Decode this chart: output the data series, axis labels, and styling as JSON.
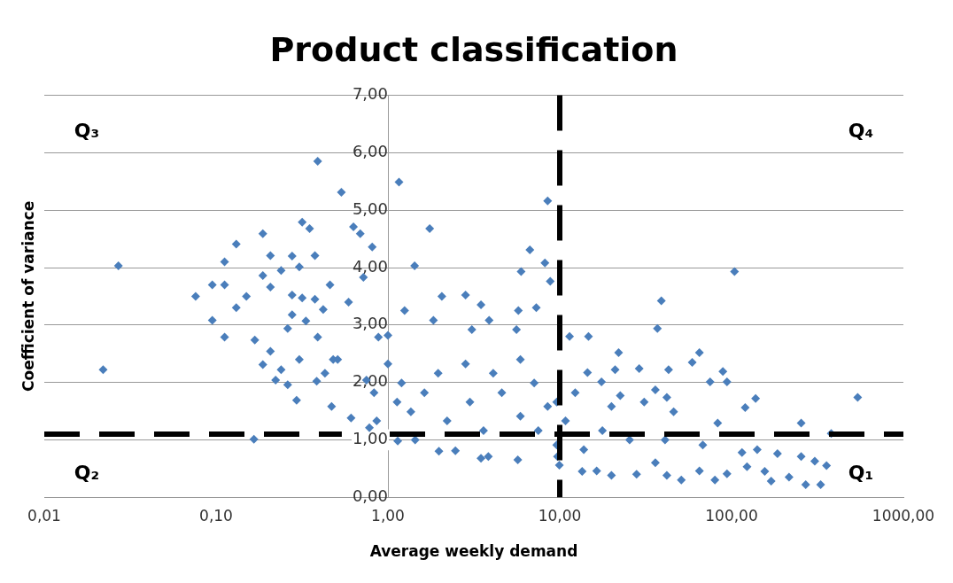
{
  "chart_data": {
    "type": "scatter",
    "title": "Product classification",
    "xlabel": "Average weekly demand",
    "ylabel": "Coefficient of variance",
    "log": "x",
    "grid": "y",
    "legend": false,
    "marker": "diamond",
    "xlim": [
      0.01,
      1000
    ],
    "xticks": [
      {
        "value": 0.01,
        "label": "0,01"
      },
      {
        "value": 0.1,
        "label": "0,10"
      },
      {
        "value": 1,
        "label": "1,00"
      },
      {
        "value": 10,
        "label": "10,00"
      },
      {
        "value": 100,
        "label": "100,00"
      },
      {
        "value": 1000,
        "label": "1000,00"
      }
    ],
    "ylim": [
      0,
      7
    ],
    "yticks": [
      {
        "value": 0,
        "label": "0,00"
      },
      {
        "value": 1,
        "label": "1,00"
      },
      {
        "value": 2,
        "label": "2,00"
      },
      {
        "value": 3,
        "label": "3,00"
      },
      {
        "value": 4,
        "label": "4,00"
      },
      {
        "value": 5,
        "label": "5,00"
      },
      {
        "value": 6,
        "label": "6,00"
      },
      {
        "value": 7,
        "label": "7,00"
      }
    ],
    "series": [
      {
        "color": "#4a7ebb",
        "x": [
          0.027,
          0.022,
          0.076,
          0.095,
          0.095,
          0.112,
          0.112,
          0.112,
          0.131,
          0.131,
          0.15,
          0.168,
          0.166,
          0.187,
          0.187,
          0.187,
          0.207,
          0.207,
          0.207,
          0.222,
          0.239,
          0.239,
          0.261,
          0.261,
          0.277,
          0.277,
          0.277,
          0.294,
          0.305,
          0.305,
          0.317,
          0.317,
          0.333,
          0.35,
          0.376,
          0.376,
          0.39,
          0.385,
          0.39,
          0.42,
          0.46,
          0.47,
          0.48,
          0.536,
          0.59,
          0.63,
          0.61,
          0.69,
          0.72,
          0.78,
          0.81,
          0.75,
          0.88,
          0.86,
          1.0,
          0.83,
          0.51,
          0.43,
          1.16,
          8.5,
          1.75,
          6.7,
          1.43,
          8.2,
          5.96,
          8.8,
          104,
          39,
          37,
          2.06,
          2.83,
          3.48,
          5.74,
          7.3,
          1.25,
          3.88,
          1.84,
          3.08,
          5.6,
          14.7,
          11.4,
          22,
          65,
          59,
          29,
          43,
          89,
          75,
          94,
          542,
          138,
          120,
          42,
          31,
          36,
          21,
          14.5,
          17.5,
          254,
          380,
          83,
          46,
          22.5,
          270,
          330,
          216,
          170,
          357,
          305,
          254,
          185,
          80,
          94,
          123,
          156,
          115,
          51,
          65,
          42,
          36,
          28,
          20,
          16.4,
          13.5,
          9.95,
          9.7,
          5.7,
          3.84,
          3.48,
          1.98,
          2.47,
          1.14,
          1.44,
          1.36,
          1.63,
          2.21,
          3.0,
          3.6,
          4.6,
          5.9,
          7.5,
          8.5,
          9.6,
          10.8,
          13.8,
          17.7,
          20,
          25.5,
          41,
          68,
          141,
          1.2,
          1.96,
          2.83,
          4.1,
          5.9,
          7.1,
          9.6,
          12.3,
          1.0,
          1.13
        ],
        "values": [
          4.03,
          2.22,
          3.5,
          3.7,
          3.08,
          4.1,
          3.7,
          2.79,
          4.41,
          3.3,
          3.5,
          2.74,
          1.01,
          4.59,
          3.86,
          2.31,
          4.21,
          3.66,
          2.54,
          2.04,
          3.95,
          2.22,
          1.96,
          2.94,
          4.2,
          3.52,
          3.18,
          1.69,
          4.01,
          2.4,
          4.79,
          3.47,
          3.07,
          4.68,
          4.21,
          3.45,
          5.85,
          2.02,
          2.79,
          3.27,
          3.7,
          1.58,
          2.4,
          5.31,
          3.4,
          4.71,
          1.38,
          4.59,
          3.83,
          1.21,
          4.36,
          2.04,
          2.79,
          1.33,
          2.32,
          1.82,
          2.4,
          2.16,
          5.49,
          5.16,
          4.68,
          4.31,
          4.03,
          4.08,
          3.93,
          3.76,
          3.93,
          3.42,
          2.94,
          3.5,
          3.52,
          3.35,
          3.25,
          3.3,
          3.25,
          3.08,
          3.08,
          2.92,
          2.92,
          2.8,
          2.8,
          2.52,
          2.52,
          2.35,
          2.24,
          2.22,
          2.19,
          2.01,
          2.01,
          1.74,
          1.72,
          1.56,
          1.74,
          1.66,
          1.87,
          2.22,
          2.17,
          2.01,
          1.29,
          1.11,
          1.29,
          1.49,
          1.77,
          0.22,
          0.22,
          0.35,
          0.28,
          0.55,
          0.63,
          0.71,
          0.76,
          0.3,
          0.41,
          0.53,
          0.45,
          0.78,
          0.3,
          0.46,
          0.38,
          0.6,
          0.4,
          0.38,
          0.46,
          0.45,
          0.56,
          0.71,
          0.65,
          0.71,
          0.68,
          0.8,
          0.81,
          0.98,
          1.0,
          1.49,
          1.82,
          1.33,
          1.66,
          1.16,
          1.82,
          1.41,
          1.16,
          1.58,
          0.91,
          1.33,
          0.83,
          1.16,
          1.58,
          1.0,
          1.0,
          0.91,
          0.83,
          1.99,
          2.16,
          2.32,
          2.16,
          2.4,
          1.99,
          1.66,
          1.82,
          2.82,
          1.66
        ]
      }
    ],
    "ref_lines": [
      {
        "axis": "x",
        "value": 10,
        "color": "#000000",
        "line_style": "dashed"
      },
      {
        "axis": "y",
        "value": 1.1,
        "color": "#000000",
        "line_style": "dashed"
      }
    ],
    "annotations": [
      "Q₃",
      "Q₄",
      "Q₂",
      "Q₁"
    ]
  }
}
